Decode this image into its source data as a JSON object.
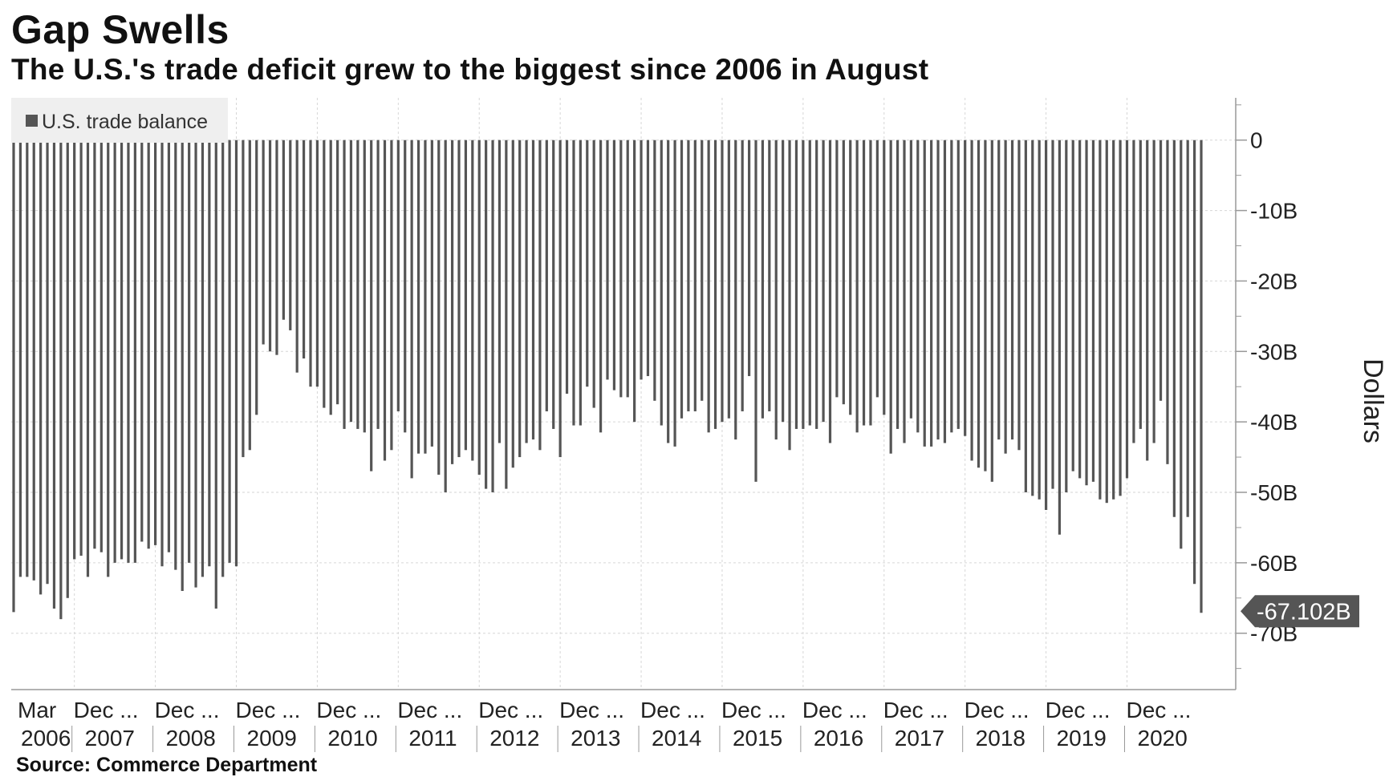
{
  "header": {
    "title": "Gap Swells",
    "subtitle": "The U.S.'s trade deficit grew to the biggest since 2006 in August"
  },
  "footer": {
    "source": "Source: Commerce Department"
  },
  "colors": {
    "bar": "#555555",
    "axis": "#999999",
    "grid": "#d6d6d6",
    "legend_bg": "#efefef",
    "callout_bg": "#555555",
    "callout_text": "#ffffff"
  },
  "chart_data": {
    "type": "bar",
    "title": "Gap Swells",
    "subtitle": "The U.S.'s trade deficit grew to the biggest since 2006 in August",
    "legend": [
      "U.S. trade balance"
    ],
    "legend_position": "top-left",
    "ylabel": "Dollars",
    "ylim": [
      -78,
      6
    ],
    "y_ticks": [
      0,
      -10,
      -20,
      -30,
      -40,
      -50,
      -60,
      -70
    ],
    "y_tick_labels": [
      "0",
      "-10B",
      "-20B",
      "-30B",
      "-40B",
      "-50B",
      "-60B",
      "-70B"
    ],
    "grid": true,
    "x_start": "Mar 2006",
    "x_end": "Aug 2020",
    "x_tick_labels_top": [
      "Mar",
      "Dec ...",
      "Dec ...",
      "Dec ...",
      "Dec ...",
      "Dec ...",
      "Dec ...",
      "Dec ...",
      "Dec ...",
      "Dec ...",
      "Dec ...",
      "Dec ...",
      "Dec ...",
      "Dec ...",
      "Dec ..."
    ],
    "x_tick_labels_bottom": [
      "2006",
      "2007",
      "2008",
      "2009",
      "2010",
      "2011",
      "2012",
      "2013",
      "2014",
      "2015",
      "2016",
      "2017",
      "2018",
      "2019",
      "2020"
    ],
    "last_value_label": "-67.102B",
    "series": [
      {
        "name": "U.S. trade balance",
        "values": [
          -67,
          -62,
          -62,
          -62.5,
          -64.5,
          -63,
          -66.5,
          -68,
          -65,
          -59.5,
          -59,
          -62,
          -58,
          -58.5,
          -62,
          -60,
          -59.5,
          -60,
          -60,
          -57,
          -58,
          -57.5,
          -60.5,
          -58.5,
          -61,
          -64,
          -60,
          -63.5,
          -62,
          -60.5,
          -66.5,
          -62,
          -60,
          -60.5,
          -45,
          -44,
          -39,
          -29,
          -30,
          -30.5,
          -25.5,
          -27,
          -33,
          -31,
          -35,
          -35,
          -38,
          -39,
          -37.5,
          -41,
          -40,
          -41,
          -41.5,
          -47,
          -41,
          -45.5,
          -44,
          -38.5,
          -41.5,
          -48,
          -44.5,
          -44.5,
          -43.5,
          -47.5,
          -50,
          -46,
          -45,
          -44,
          -45.5,
          -47.5,
          -49.5,
          -50,
          -43,
          -49.5,
          -46.5,
          -45,
          -43,
          -42.5,
          -44,
          -38.5,
          -41,
          -45,
          -36,
          -40.5,
          -40.5,
          -35,
          -38,
          -41.5,
          -34,
          -35.5,
          -36.5,
          -36.5,
          -40,
          -34,
          -33.5,
          -37,
          -40.5,
          -43,
          -43.5,
          -39.5,
          -38.5,
          -38.5,
          -37,
          -41.5,
          -41,
          -40,
          -39.5,
          -42.5,
          -38.5,
          -33.5,
          -48.5,
          -39.5,
          -38.5,
          -42.5,
          -40,
          -44,
          -41,
          -41,
          -40.5,
          -41,
          -40,
          -43,
          -36.5,
          -37.5,
          -39,
          -41.5,
          -40.5,
          -40.5,
          -36.5,
          -39,
          -44.5,
          -41,
          -43,
          -39.5,
          -41.5,
          -43.5,
          -43.5,
          -42.5,
          -43,
          -41.5,
          -41,
          -42,
          -45.5,
          -46.5,
          -47,
          -48.5,
          -42.5,
          -44.5,
          -42.5,
          -44,
          -50,
          -50.5,
          -51,
          -52.5,
          -49.5,
          -56,
          -50,
          -47,
          -48,
          -49,
          -48.5,
          -51,
          -51.5,
          -51,
          -50.5,
          -48,
          -43,
          -41,
          -45.5,
          -43,
          -37,
          -46,
          -53.5,
          -58,
          -53.5,
          -63,
          -67.102
        ]
      }
    ]
  }
}
